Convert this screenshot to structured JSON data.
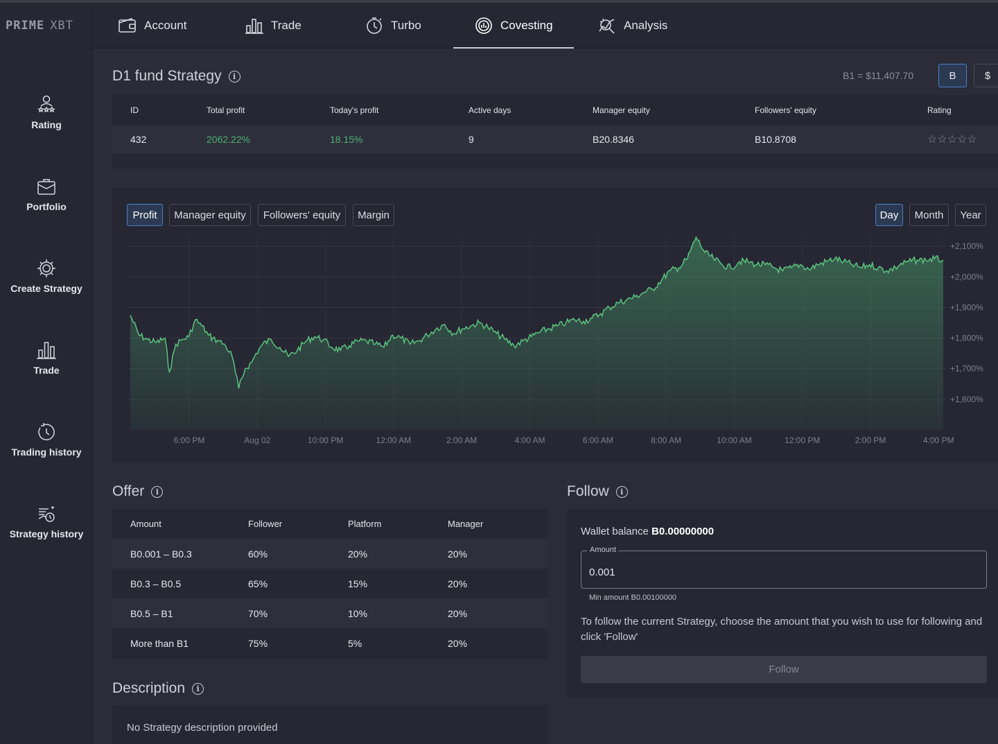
{
  "brand": {
    "logo_bold": "PRIME",
    "logo_light": "XBT"
  },
  "topnav": {
    "tabs": [
      {
        "label": "Account",
        "icon": "wallet-icon"
      },
      {
        "label": "Trade",
        "icon": "bars-icon"
      },
      {
        "label": "Turbo",
        "icon": "stopwatch-icon"
      },
      {
        "label": "Covesting",
        "icon": "covesting-icon",
        "active": true
      },
      {
        "label": "Analysis",
        "icon": "analysis-icon"
      }
    ]
  },
  "sidebar": {
    "items": [
      {
        "label": "Rating",
        "icon": "rating-icon"
      },
      {
        "label": "Portfolio",
        "icon": "briefcase-icon"
      },
      {
        "label": "Create Strategy",
        "icon": "gear-icon"
      },
      {
        "label": "Trade",
        "icon": "bars-icon"
      },
      {
        "label": "Trading history",
        "icon": "history-icon"
      },
      {
        "label": "Strategy history",
        "icon": "strategy-history-icon"
      }
    ]
  },
  "header": {
    "title": "D1 fund Strategy",
    "rate": "B1 = $11,407.70",
    "currency_btc": "B",
    "currency_usd": "$"
  },
  "stats": {
    "columns": [
      "ID",
      "Total profit",
      "Today's profit",
      "Active days",
      "Manager equity",
      "Followers' equity",
      "Rating"
    ],
    "row": {
      "id": "432",
      "total_profit": "2062.22%",
      "todays_profit": "18.15%",
      "active_days": "9",
      "manager_equity": "B20.8346",
      "followers_equity": "B10.8708",
      "rating": "☆☆☆☆☆"
    }
  },
  "chart_tabs": {
    "profit": "Profit",
    "manager_equity": "Manager equity",
    "followers_equity": "Followers' equity",
    "margin": "Margin"
  },
  "period_tabs": {
    "day": "Day",
    "month": "Month",
    "year": "Year"
  },
  "chart_data": {
    "type": "area",
    "x_ticks": [
      "6:00 PM",
      "Aug 02",
      "10:00 PM",
      "12:00 AM",
      "2:00 AM",
      "4:00 AM",
      "6:00 AM",
      "8:00 AM",
      "10:00 AM",
      "12:00 PM",
      "2:00 PM",
      "4:00 PM"
    ],
    "y_ticks": [
      "+1,600%",
      "+1,700%",
      "+1,800%",
      "+1,900%",
      "+2,000%",
      "+2,100%"
    ],
    "ylim": [
      1600,
      2100
    ],
    "grid": true,
    "series": [
      {
        "color": "#4fb274",
        "x_hours": [
          0,
          0.4,
          0.8,
          1.2,
          1.6,
          1.8,
          2.1,
          2.4,
          2.7,
          3.0,
          3.3,
          3.6,
          3.8,
          4.1,
          4.4,
          4.7,
          5.0,
          5.3,
          5.6,
          5.8,
          6.1,
          6.5,
          6.9,
          7.3,
          7.7,
          8.1,
          8.5,
          8.9,
          9.3,
          9.7,
          10.1,
          10.5,
          10.9,
          11.3,
          11.7,
          12.1,
          12.5,
          12.9,
          13.3,
          13.7,
          14.1,
          14.5,
          14.9,
          15.3,
          15.7,
          16.1,
          16.5,
          16.9,
          17.3,
          17.7,
          18.1,
          18.5,
          18.9,
          19.3,
          19.7,
          20.1,
          20.5,
          20.9,
          21.3,
          21.7,
          22.1,
          22.5,
          22.9,
          23.3,
          23.7,
          24.1,
          24.5,
          24.9,
          25.3,
          25.7,
          26.1,
          26.5,
          26.9,
          27.3,
          27.7,
          28.1,
          28.5,
          28.9,
          29.3,
          29.7,
          30.1,
          30.5,
          30.9,
          31.3,
          31.7,
          32.1,
          32.5,
          32.9,
          33.3,
          33.7,
          34.1,
          34.5,
          34.9,
          35.3,
          35.5,
          35.9,
          36.3,
          36.7,
          37.1,
          37.5
        ],
        "values": [
          1875,
          1810,
          1795,
          1785,
          1800,
          1690,
          1780,
          1795,
          1805,
          1860,
          1840,
          1810,
          1800,
          1790,
          1775,
          1740,
          1635,
          1700,
          1720,
          1750,
          1780,
          1795,
          1770,
          1740,
          1760,
          1790,
          1805,
          1795,
          1770,
          1760,
          1775,
          1790,
          1790,
          1780,
          1770,
          1810,
          1800,
          1780,
          1790,
          1810,
          1830,
          1845,
          1815,
          1830,
          1840,
          1850,
          1835,
          1815,
          1795,
          1775,
          1790,
          1805,
          1820,
          1830,
          1840,
          1850,
          1860,
          1855,
          1865,
          1880,
          1900,
          1915,
          1925,
          1935,
          1950,
          1960,
          1990,
          2020,
          2030,
          2060,
          2130,
          2080,
          2060,
          2040,
          2030,
          2050,
          2050,
          2040,
          2040,
          2030,
          2020,
          2030,
          2040,
          2025,
          2040,
          2050,
          2060,
          2050,
          2040,
          2030,
          2040,
          2030,
          2020,
          2030,
          2040,
          2050,
          2055,
          2055,
          2060,
          2055
        ]
      }
    ]
  },
  "offer": {
    "title": "Offer",
    "columns": [
      "Amount",
      "Follower",
      "Platform",
      "Manager"
    ],
    "rows": [
      {
        "amount": "B0.001 – B0.3",
        "follower": "60%",
        "platform": "20%",
        "manager": "20%"
      },
      {
        "amount": "B0.3 – B0.5",
        "follower": "65%",
        "platform": "15%",
        "manager": "20%"
      },
      {
        "amount": "B0.5 – B1",
        "follower": "70%",
        "platform": "10%",
        "manager": "20%"
      },
      {
        "amount": "More than B1",
        "follower": "75%",
        "platform": "5%",
        "manager": "20%"
      }
    ]
  },
  "follow": {
    "title": "Follow",
    "wallet_label": "Wallet balance",
    "wallet_value": "B0.00000000",
    "amount_label": "Amount",
    "amount_value": "0.001",
    "min_amount": "Min amount B0.00100000",
    "instruction": "To follow the current Strategy, choose the amount that you wish to use for following and click 'Follow'",
    "button": "Follow"
  },
  "description": {
    "title": "Description",
    "text": "No Strategy description provided"
  }
}
